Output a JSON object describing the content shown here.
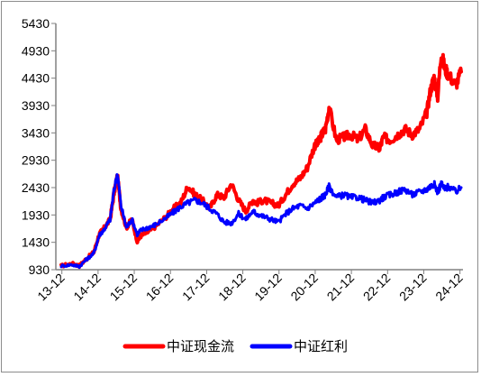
{
  "chart_data": {
    "type": "line",
    "title": "",
    "xlabel": "",
    "ylabel": "",
    "ylim": [
      930,
      5430
    ],
    "y_ticks": [
      "5430",
      "4930",
      "4430",
      "3930",
      "3430",
      "2930",
      "2430",
      "1930",
      "1430",
      "930"
    ],
    "x_ticks": [
      "13-12",
      "14-12",
      "15-12",
      "16-12",
      "17-12",
      "18-12",
      "19-12",
      "20-12",
      "21-12",
      "22-12",
      "23-12",
      "24-12"
    ],
    "legend_position": "bottom",
    "grid": false,
    "series": [
      {
        "name": "中证现金流",
        "color": "#ff0000",
        "x": [
          2013.9,
          2014.2,
          2014.4,
          2014.6,
          2014.8,
          2014.95,
          2015.1,
          2015.25,
          2015.35,
          2015.45,
          2015.55,
          2015.7,
          2015.85,
          2016.0,
          2016.1,
          2016.3,
          2016.5,
          2016.8,
          2017.0,
          2017.2,
          2017.4,
          2017.6,
          2017.8,
          2018.0,
          2018.2,
          2018.4,
          2018.6,
          2018.8,
          2019.0,
          2019.2,
          2019.3,
          2019.5,
          2019.7,
          2019.9,
          2020.1,
          2020.3,
          2020.5,
          2020.7,
          2020.9,
          2021.0,
          2021.1,
          2021.2,
          2021.3,
          2021.5,
          2021.7,
          2021.9,
          2022.1,
          2022.3,
          2022.5,
          2022.7,
          2022.8,
          2023.0,
          2023.2,
          2023.4,
          2023.6,
          2023.8,
          2024.0,
          2024.1,
          2024.2,
          2024.3,
          2024.4,
          2024.5,
          2024.6,
          2024.8,
          2024.95
        ],
        "y": [
          1000,
          1040,
          1000,
          1130,
          1250,
          1580,
          1700,
          1850,
          2300,
          2650,
          2050,
          1700,
          1850,
          1450,
          1550,
          1620,
          1720,
          1900,
          2050,
          2150,
          2450,
          2300,
          2200,
          2050,
          2300,
          2250,
          2500,
          2200,
          2000,
          2200,
          2150,
          2200,
          2150,
          2100,
          2300,
          2500,
          2600,
          2800,
          3200,
          3250,
          3400,
          3500,
          3900,
          3300,
          3350,
          3400,
          3300,
          3500,
          3200,
          3150,
          3350,
          3300,
          3400,
          3500,
          3400,
          3500,
          3800,
          4200,
          4450,
          4100,
          4900,
          4600,
          4500,
          4300,
          4550
        ]
      },
      {
        "name": "中证红利",
        "color": "#0000ff",
        "x": [
          2013.9,
          2014.2,
          2014.4,
          2014.6,
          2014.8,
          2014.95,
          2015.1,
          2015.25,
          2015.35,
          2015.45,
          2015.55,
          2015.7,
          2015.85,
          2016.0,
          2016.1,
          2016.3,
          2016.5,
          2016.8,
          2017.0,
          2017.2,
          2017.4,
          2017.6,
          2017.8,
          2018.0,
          2018.2,
          2018.4,
          2018.6,
          2018.8,
          2019.0,
          2019.2,
          2019.3,
          2019.5,
          2019.7,
          2019.9,
          2020.1,
          2020.3,
          2020.5,
          2020.7,
          2020.9,
          2021.0,
          2021.1,
          2021.2,
          2021.3,
          2021.5,
          2021.7,
          2021.9,
          2022.1,
          2022.3,
          2022.5,
          2022.7,
          2022.8,
          2023.0,
          2023.2,
          2023.4,
          2023.6,
          2023.8,
          2024.0,
          2024.1,
          2024.2,
          2024.3,
          2024.4,
          2024.5,
          2024.6,
          2024.8,
          2024.95
        ],
        "y": [
          1000,
          1020,
          990,
          1120,
          1230,
          1560,
          1680,
          1850,
          2350,
          2700,
          2100,
          1700,
          1850,
          1580,
          1650,
          1700,
          1750,
          1880,
          1980,
          2080,
          2150,
          2200,
          2150,
          2050,
          1950,
          1800,
          1780,
          1950,
          1850,
          2000,
          1950,
          1900,
          1850,
          1800,
          1950,
          2050,
          2100,
          2050,
          2150,
          2200,
          2250,
          2300,
          2450,
          2250,
          2300,
          2250,
          2250,
          2200,
          2150,
          2200,
          2250,
          2300,
          2350,
          2400,
          2300,
          2350,
          2400,
          2450,
          2500,
          2350,
          2500,
          2400,
          2450,
          2350,
          2430
        ]
      }
    ]
  }
}
